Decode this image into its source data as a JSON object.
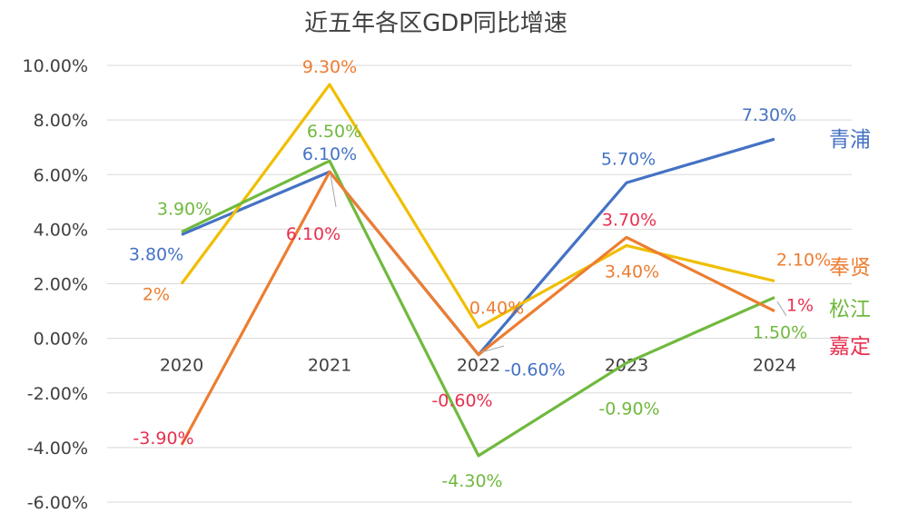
{
  "chart_data": {
    "type": "line",
    "title": "近五年各区GDP同比增速",
    "xlabel": "",
    "ylabel": "",
    "categories": [
      "2020",
      "2021",
      "2022",
      "2023",
      "2024"
    ],
    "y_ticks": [
      "10.00%",
      "8.00%",
      "6.00%",
      "4.00%",
      "2.00%",
      "0.00%",
      "-2.00%",
      "-4.00%",
      "-6.00%"
    ],
    "ylim": [
      -6,
      10
    ],
    "grid": true,
    "legend_position": "right, at line ends",
    "series": [
      {
        "name": "青浦",
        "color": "#4472C4",
        "values": [
          3.8,
          6.1,
          -0.6,
          5.7,
          7.3
        ],
        "labels": [
          "3.80%",
          "6.10%",
          "-0.60%",
          "5.70%",
          "7.30%"
        ]
      },
      {
        "name": "奉贤",
        "color": "#F0BE00",
        "label_color": "#ED7D31",
        "values": [
          2.0,
          9.3,
          0.4,
          3.4,
          2.1
        ],
        "labels": [
          "2%",
          "9.30%",
          "0.40%",
          "3.40%",
          "2.10%"
        ]
      },
      {
        "name": "松江",
        "color": "#70B93E",
        "values": [
          3.9,
          6.5,
          -4.3,
          -0.9,
          1.5
        ],
        "labels": [
          "3.90%",
          "6.50%",
          "-4.30%",
          "-0.90%",
          "1.50%"
        ]
      },
      {
        "name": "嘉定",
        "color": "#ED7D31",
        "label_color": "#E8304F",
        "values": [
          -3.9,
          6.1,
          -0.6,
          3.7,
          1.0
        ],
        "labels": [
          "-3.90%",
          "6.10%",
          "-0.60%",
          "3.70%",
          "1%"
        ]
      }
    ]
  }
}
